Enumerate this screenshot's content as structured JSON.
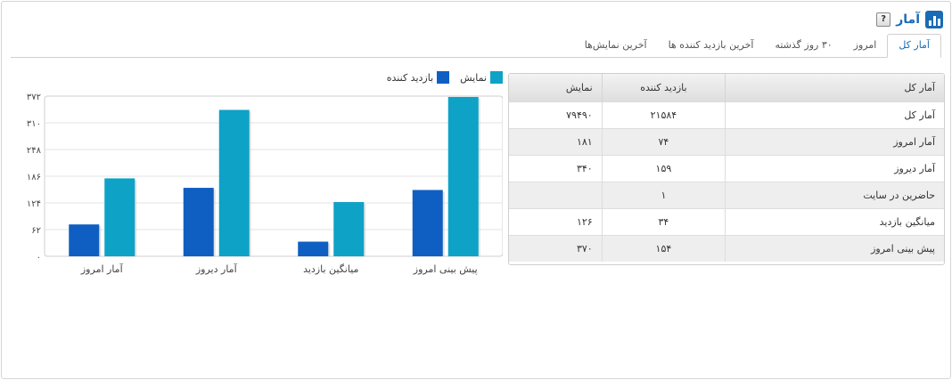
{
  "header": {
    "title": "آمار",
    "help_label": "?"
  },
  "tabs": [
    {
      "label": "آمار کل",
      "active": true
    },
    {
      "label": "امروز",
      "active": false
    },
    {
      "label": "۳۰ روز گذشته",
      "active": false
    },
    {
      "label": "آخرین بازدید کننده ها",
      "active": false
    },
    {
      "label": "آخرین نمایش‌ها",
      "active": false
    }
  ],
  "table": {
    "headers": {
      "name": "آمار کل",
      "visitors": "بازدید کننده",
      "views": "نمایش"
    },
    "rows": [
      {
        "name": "آمار کل",
        "visitors": "۲۱۵۸۴",
        "views": "۷۹۴۹۰"
      },
      {
        "name": "آمار امروز",
        "visitors": "۷۴",
        "views": "۱۸۱"
      },
      {
        "name": "آمار دیروز",
        "visitors": "۱۵۹",
        "views": "۳۴۰"
      },
      {
        "name": "حاضرین در سایت",
        "visitors": "۱",
        "views": ""
      },
      {
        "name": "میانگین بازدید",
        "visitors": "۳۴",
        "views": "۱۲۶"
      },
      {
        "name": "پیش بینی امروز",
        "visitors": "۱۵۴",
        "views": "۳۷۰"
      }
    ]
  },
  "colors": {
    "visitors": "#0f5fc2",
    "views": "#0ea2c7",
    "accent": "#1a6bb5"
  },
  "chart_data": {
    "type": "bar",
    "categories": [
      "پیش بینی امروز",
      "میانگین بازدید",
      "آمار دیروز",
      "آمار امروز"
    ],
    "series": [
      {
        "name": "بازدید کننده",
        "values": [
          154,
          34,
          159,
          74
        ]
      },
      {
        "name": "نمایش",
        "values": [
          370,
          126,
          340,
          181
        ]
      }
    ],
    "y_ticks": [
      "۰",
      "۶۲",
      "۱۲۴",
      "۱۸۶",
      "۲۴۸",
      "۳۱۰",
      "۳۷۲"
    ],
    "ylim": [
      0,
      372
    ],
    "grid": true,
    "legend": "top-right"
  }
}
